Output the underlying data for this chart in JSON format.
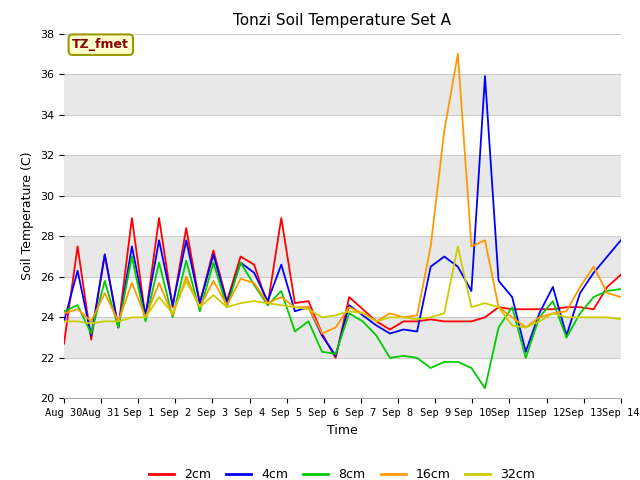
{
  "title": "Tonzi Soil Temperature Set A",
  "xlabel": "Time",
  "ylabel": "Soil Temperature (C)",
  "ylim": [
    20,
    38
  ],
  "annotation_text": "TZ_fmet",
  "annotation_color": "#8b0000",
  "annotation_bg": "#ffffcc",
  "annotation_edge": "#999900",
  "plot_bg_bands": true,
  "series_colors": {
    "2cm": "#ff0000",
    "4cm": "#0000ff",
    "8cm": "#00cc00",
    "16cm": "#ff9900",
    "32cm": "#cccc00"
  },
  "legend_labels": [
    "2cm",
    "4cm",
    "8cm",
    "16cm",
    "32cm"
  ],
  "xtick_labels": [
    "Aug 30",
    "Aug 31",
    "Sep 1",
    "Sep 2",
    "Sep 3",
    "Sep 4",
    "Sep 5",
    "Sep 6",
    "Sep 7",
    "Sep 8",
    "Sep 9",
    "Sep 10",
    "Sep 11",
    "Sep 12",
    "Sep 13",
    "Sep 14"
  ],
  "data_2cm": [
    22.7,
    27.5,
    22.9,
    27.1,
    23.5,
    28.9,
    24.0,
    28.9,
    24.5,
    28.4,
    24.7,
    27.3,
    24.8,
    27.0,
    26.6,
    24.6,
    28.9,
    24.7,
    24.8,
    23.2,
    22.0,
    25.0,
    24.4,
    23.8,
    23.4,
    23.8,
    23.8,
    23.9,
    23.8,
    23.8,
    23.8,
    24.0,
    24.5,
    24.4,
    24.4,
    24.4,
    24.4,
    24.5,
    24.5,
    24.4,
    25.5,
    26.1
  ],
  "data_4cm": [
    23.8,
    26.3,
    23.1,
    27.1,
    23.5,
    27.5,
    24.1,
    27.8,
    24.6,
    27.8,
    24.7,
    27.1,
    24.7,
    26.7,
    26.2,
    24.8,
    26.6,
    24.3,
    24.5,
    23.1,
    22.1,
    24.6,
    24.1,
    23.6,
    23.2,
    23.4,
    23.3,
    26.5,
    27.0,
    26.5,
    25.3,
    35.9,
    25.8,
    25.0,
    22.3,
    24.2,
    25.5,
    23.1,
    25.2,
    26.2,
    27.0,
    27.8
  ],
  "data_8cm": [
    24.3,
    24.6,
    23.2,
    25.8,
    23.5,
    27.0,
    23.8,
    26.7,
    24.0,
    26.8,
    24.3,
    26.7,
    24.5,
    26.7,
    25.6,
    24.6,
    25.3,
    23.3,
    23.8,
    22.3,
    22.2,
    24.2,
    23.8,
    23.1,
    22.0,
    22.1,
    22.0,
    21.5,
    21.8,
    21.8,
    21.5,
    20.5,
    23.5,
    24.5,
    22.0,
    24.0,
    24.8,
    23.0,
    24.2,
    25.0,
    25.3,
    25.4
  ],
  "data_16cm": [
    24.2,
    24.4,
    23.8,
    25.2,
    23.8,
    25.7,
    24.0,
    25.7,
    24.1,
    26.0,
    24.5,
    25.8,
    24.6,
    25.9,
    25.7,
    24.7,
    25.0,
    24.5,
    24.5,
    23.2,
    23.5,
    24.5,
    24.2,
    23.8,
    24.2,
    24.0,
    24.1,
    27.5,
    33.2,
    37.0,
    27.5,
    27.8,
    24.5,
    24.0,
    23.5,
    24.0,
    24.2,
    24.3,
    25.5,
    26.5,
    25.2,
    25.0
  ],
  "data_32cm": [
    23.8,
    23.8,
    23.7,
    23.8,
    23.8,
    24.0,
    24.0,
    25.0,
    24.2,
    25.8,
    24.5,
    25.1,
    24.5,
    24.7,
    24.8,
    24.7,
    24.6,
    24.5,
    24.4,
    24.0,
    24.1,
    24.3,
    24.2,
    23.8,
    24.0,
    24.0,
    23.9,
    24.0,
    24.2,
    27.5,
    24.5,
    24.7,
    24.5,
    23.6,
    23.5,
    23.8,
    24.2,
    24.0,
    24.0,
    24.0,
    24.0,
    23.9
  ]
}
